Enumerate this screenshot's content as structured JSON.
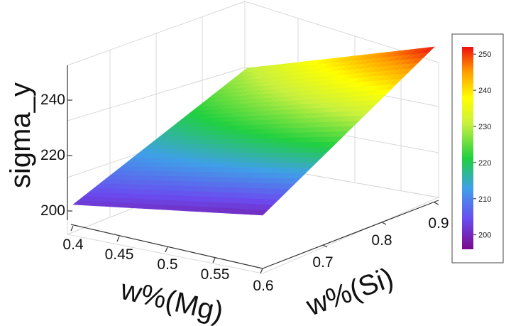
{
  "chart_data": {
    "type": "surface",
    "xlabel": "w%(Mg)",
    "ylabel": "w%(Si)",
    "zlabel": "sigma_y",
    "x_ticks": [
      "0.4",
      "0.45",
      "0.5",
      "0.55",
      "0.6"
    ],
    "y_ticks": [
      "0.7",
      "0.8",
      "0.9"
    ],
    "z_ticks": [
      "200",
      "220",
      "240"
    ],
    "colorbar_ticks": [
      "200",
      "210",
      "220",
      "230",
      "240",
      "250"
    ],
    "colorbar_range": [
      196,
      252
    ],
    "x": [
      0.4,
      0.6
    ],
    "y": [
      0.6,
      0.9
    ],
    "z": [
      [
        202,
        230
      ],
      [
        200,
        252
      ]
    ]
  }
}
